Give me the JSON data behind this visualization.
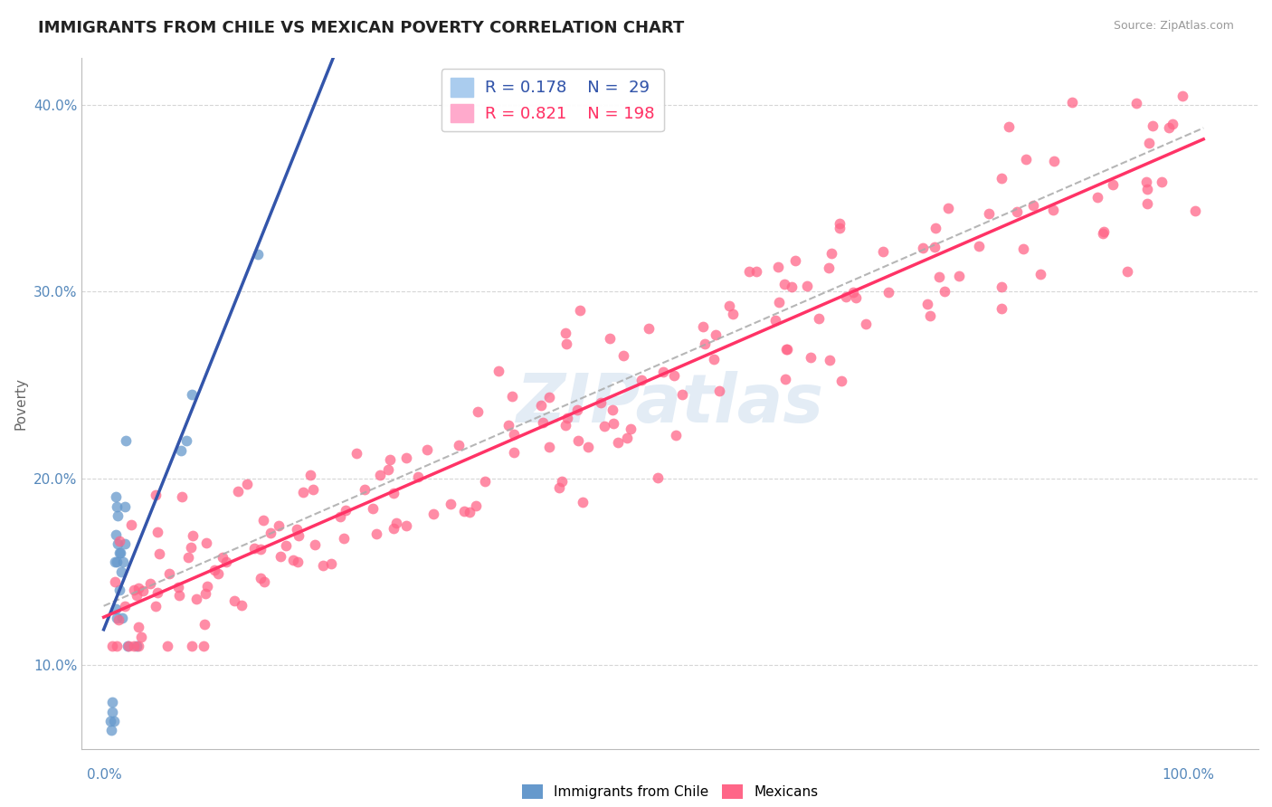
{
  "title": "IMMIGRANTS FROM CHILE VS MEXICAN POVERTY CORRELATION CHART",
  "source": "Source: ZipAtlas.com",
  "ylabel": "Poverty",
  "ylim": [
    0.055,
    0.425
  ],
  "xlim": [
    -0.02,
    1.05
  ],
  "yticks": [
    0.1,
    0.2,
    0.3,
    0.4
  ],
  "ytick_labels": [
    "10.0%",
    "20.0%",
    "30.0%",
    "40.0%"
  ],
  "legend_r_chile": "R = 0.178",
  "legend_n_chile": "N =  29",
  "legend_r_mexican": "R = 0.821",
  "legend_n_mexican": "N = 198",
  "chile_color": "#6699cc",
  "mexican_color": "#ff6688",
  "chile_line_color": "#3355aa",
  "mexican_line_color": "#ff3366",
  "dashed_line_color": "#aaaaaa",
  "background_color": "#ffffff",
  "watermark": "ZIPatlas",
  "watermark_color": "#ccddee",
  "grid_color": "#cccccc",
  "chile_scatter_x": [
    0.012,
    0.015,
    0.011,
    0.013,
    0.01,
    0.014,
    0.018,
    0.016,
    0.019,
    0.011,
    0.012,
    0.017,
    0.013,
    0.011,
    0.019,
    0.014,
    0.012,
    0.02,
    0.14,
    0.08,
    0.075,
    0.07,
    0.03,
    0.022,
    0.008,
    0.009,
    0.007,
    0.006,
    0.008
  ],
  "chile_scatter_y": [
    0.155,
    0.16,
    0.17,
    0.165,
    0.155,
    0.14,
    0.155,
    0.15,
    0.165,
    0.13,
    0.125,
    0.125,
    0.18,
    0.19,
    0.185,
    0.16,
    0.185,
    0.22,
    0.32,
    0.245,
    0.22,
    0.215,
    0.11,
    0.11,
    0.08,
    0.07,
    0.065,
    0.07,
    0.075
  ],
  "mex_seed": 42,
  "n_mex": 198
}
